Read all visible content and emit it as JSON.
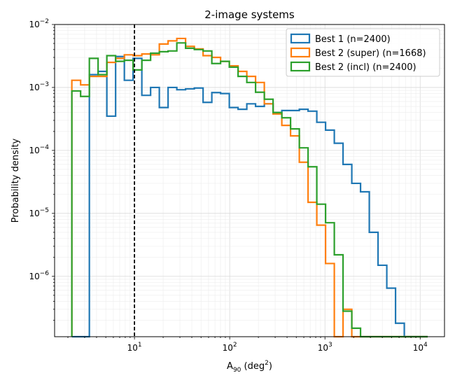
{
  "chart_data": {
    "type": "histogram",
    "title": "2-image systems",
    "xlabel": "A",
    "xlabel_sub": "90",
    "xlabel_unit_open": " (deg",
    "xlabel_unit_sup": "2",
    "xlabel_unit_close": ")",
    "ylabel": "Probability density",
    "xscale": "log",
    "yscale": "log",
    "xlim": [
      1.45,
      18000
    ],
    "ylim": [
      1.1e-07,
      0.01
    ],
    "x_ticks": [
      {
        "base": "10",
        "exp": "1",
        "value": 10
      },
      {
        "base": "10",
        "exp": "2",
        "value": 100
      },
      {
        "base": "10",
        "exp": "3",
        "value": 1000
      },
      {
        "base": "10",
        "exp": "4",
        "value": 10000
      }
    ],
    "y_ticks": [
      {
        "base": "10",
        "exp": "−6",
        "value": 1e-06
      },
      {
        "base": "10",
        "exp": "−5",
        "value": 1e-05
      },
      {
        "base": "10",
        "exp": "−4",
        "value": 0.0001
      },
      {
        "base": "10",
        "exp": "−3",
        "value": 0.001
      },
      {
        "base": "10",
        "exp": "−2",
        "value": 0.01
      }
    ],
    "grid": true,
    "legend_position": "top-right",
    "vline": {
      "x": 10,
      "style": "dashed",
      "color": "#000000"
    },
    "bin_edges": [
      2.2,
      2.72,
      3.36,
      4.15,
      5.13,
      6.34,
      7.83,
      9.67,
      11.95,
      14.77,
      18.24,
      22.54,
      27.85,
      34.41,
      42.51,
      52.53,
      64.9,
      80.19,
      99.08,
      122.4,
      151.2,
      186.9,
      230.9,
      285.3,
      352.5,
      435.5,
      538.1,
      664.9,
      821.5,
      1015,
      1254,
      1549,
      1914,
      2365,
      2922,
      3611,
      4461,
      5512,
      6810,
      8414,
      10396,
      12000
    ],
    "series": [
      {
        "name": "Best 1 (n=2400)",
        "color": "#1f77b4",
        "values": [
          0,
          0,
          0.0016,
          0.0018,
          0.00035,
          0.0031,
          0.0013,
          0.0029,
          0.00075,
          0.001,
          0.00048,
          0.001,
          0.00092,
          0.00095,
          0.00098,
          0.00058,
          0.00083,
          0.0008,
          0.00048,
          0.00045,
          0.00055,
          0.0005,
          0.00055,
          0.0004,
          0.00043,
          0.00043,
          0.00045,
          0.00042,
          0.00028,
          0.00021,
          0.00013,
          6e-05,
          3e-05,
          2.2e-05,
          5e-06,
          1.5e-06,
          6.5e-07,
          1.8e-07,
          0,
          0,
          0
        ]
      },
      {
        "name": "Best 2 (super) (n=1668)",
        "color": "#ff7f0e",
        "values": [
          0.0013,
          0.0011,
          0.0015,
          0.0015,
          0.0025,
          0.0029,
          0.0033,
          0.0032,
          0.0034,
          0.0033,
          0.0049,
          0.0055,
          0.006,
          0.0045,
          0.0041,
          0.0032,
          0.003,
          0.0026,
          0.0022,
          0.0018,
          0.0015,
          0.0012,
          0.00055,
          0.00038,
          0.00025,
          0.00017,
          6.5e-05,
          1.5e-05,
          6.5e-06,
          1.6e-06,
          0,
          3e-07,
          0,
          0,
          0,
          0,
          0,
          0,
          0,
          0,
          0
        ]
      },
      {
        "name": "Best 2 (incl) (n=2400)",
        "color": "#2ca02c",
        "values": [
          0.00088,
          0.00072,
          0.0029,
          0.0016,
          0.0032,
          0.0026,
          0.0027,
          0.0019,
          0.0027,
          0.0035,
          0.0037,
          0.0038,
          0.0051,
          0.0042,
          0.004,
          0.0038,
          0.0024,
          0.0026,
          0.0021,
          0.0015,
          0.0012,
          0.00084,
          0.00065,
          0.0004,
          0.00033,
          0.00022,
          0.00011,
          5.5e-05,
          1.4e-05,
          7.1e-06,
          2.2e-06,
          2.8e-07,
          1.5e-07,
          0,
          0,
          0,
          0,
          0,
          0,
          0,
          0
        ]
      }
    ]
  }
}
